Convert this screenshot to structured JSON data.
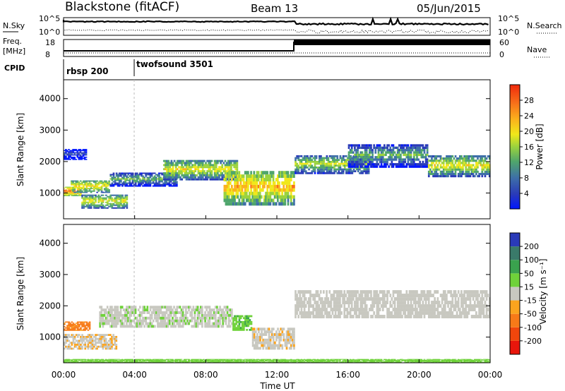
{
  "header": {
    "station": "Blackstone (fitACF)",
    "beam": "Beam 13",
    "date": "05/Jun/2015"
  },
  "sky_panel": {
    "label": "N.Sky",
    "right_label": "N.Search",
    "y_top": "10^5",
    "y_bottom": "10^0",
    "r_top": "10^5",
    "r_bottom": "10^0"
  },
  "freq_panel": {
    "label_line1": "Freq.",
    "label_line2": "[MHz]",
    "right_label": "Nave",
    "y_top": "18",
    "y_bottom": "8",
    "r_top": "60",
    "r_bottom": "0"
  },
  "cpid": {
    "label": "CPID",
    "modes": [
      {
        "name": "rbsp 200",
        "start_h": 0
      },
      {
        "name": "twofsound 3501",
        "start_h": 4
      }
    ]
  },
  "x_axis": {
    "label": "Time UT",
    "ticks": [
      "00:00",
      "04:00",
      "08:00",
      "12:00",
      "16:00",
      "20:00",
      "00:00"
    ],
    "range_h": [
      0,
      24
    ]
  },
  "chart_data": [
    {
      "type": "heatmap",
      "name": "Power",
      "ylabel": "Slant Range [km]",
      "yticks": [
        "1000",
        "2000",
        "3000",
        "4000"
      ],
      "ylim_km": [
        180,
        4600
      ],
      "colorbar_label": "Power [dB]",
      "colorbar_ticks": [
        "4",
        "8",
        "12",
        "16",
        "20",
        "24",
        "28"
      ],
      "colorbar_range": [
        0,
        32
      ],
      "colorbar_colors": [
        "#0016ff",
        "#2a3bb8",
        "#3e6fa8",
        "#4fa56c",
        "#9ad23e",
        "#f0e81a",
        "#fbb21c",
        "#f7711a",
        "#f02a0c"
      ],
      "echo_bands": [
        {
          "t0": 0.0,
          "t1": 1.0,
          "r0": 900,
          "r1": 1200,
          "db": 28
        },
        {
          "t0": 0.0,
          "t1": 1.3,
          "r0": 2050,
          "r1": 2400,
          "db": 6
        },
        {
          "t0": 0.4,
          "t1": 2.6,
          "r0": 1000,
          "r1": 1400,
          "db": 22
        },
        {
          "t0": 1.0,
          "t1": 3.6,
          "r0": 500,
          "r1": 950,
          "db": 20
        },
        {
          "t0": 2.6,
          "t1": 6.4,
          "r0": 1200,
          "r1": 1650,
          "db": 14
        },
        {
          "t0": 5.6,
          "t1": 9.8,
          "r0": 1400,
          "r1": 2050,
          "db": 20
        },
        {
          "t0": 9.0,
          "t1": 13.0,
          "r0": 600,
          "r1": 1700,
          "db": 24
        },
        {
          "t0": 13.0,
          "t1": 17.2,
          "r0": 1600,
          "r1": 2200,
          "db": 18
        },
        {
          "t0": 16.0,
          "t1": 20.5,
          "r0": 1800,
          "r1": 2550,
          "db": 14
        },
        {
          "t0": 20.5,
          "t1": 24.0,
          "r0": 1500,
          "r1": 2200,
          "db": 20
        }
      ]
    },
    {
      "type": "heatmap",
      "name": "Velocity",
      "ylabel": "Slant Range [km]",
      "yticks": [
        "1000",
        "2000",
        "3000",
        "4000"
      ],
      "ylim_km": [
        180,
        4600
      ],
      "colorbar_label": "Velocity [m s⁻¹]",
      "colorbar_ticks": [
        "-200",
        "-100",
        "-50",
        "-15",
        "15",
        "50",
        "100",
        "200"
      ],
      "colorbar_colors": [
        "#e8160c",
        "#f0460c",
        "#f77a18",
        "#fba41e",
        "#c8c8c0",
        "#6fd23a",
        "#3aa24e",
        "#3a7a6a",
        "#2a3ab8"
      ],
      "echo_bands": [
        {
          "t0": 0.0,
          "t1": 3.0,
          "r0": 600,
          "r1": 1100,
          "v": -10
        },
        {
          "t0": 0.0,
          "t1": 1.5,
          "r0": 1200,
          "r1": 1500,
          "v": -60
        },
        {
          "t0": 2.0,
          "t1": 9.5,
          "r0": 1300,
          "r1": 2000,
          "v": 5
        },
        {
          "t0": 9.5,
          "t1": 10.6,
          "r0": 1200,
          "r1": 1700,
          "v": 40
        },
        {
          "t0": 10.6,
          "t1": 13.0,
          "r0": 600,
          "r1": 1300,
          "v": -5
        },
        {
          "t0": 13.0,
          "t1": 24.0,
          "r0": 1600,
          "r1": 2500,
          "v": 0
        },
        {
          "t0": 0.0,
          "t1": 24.0,
          "r0": 190,
          "r1": 300,
          "v": 30
        }
      ]
    }
  ]
}
